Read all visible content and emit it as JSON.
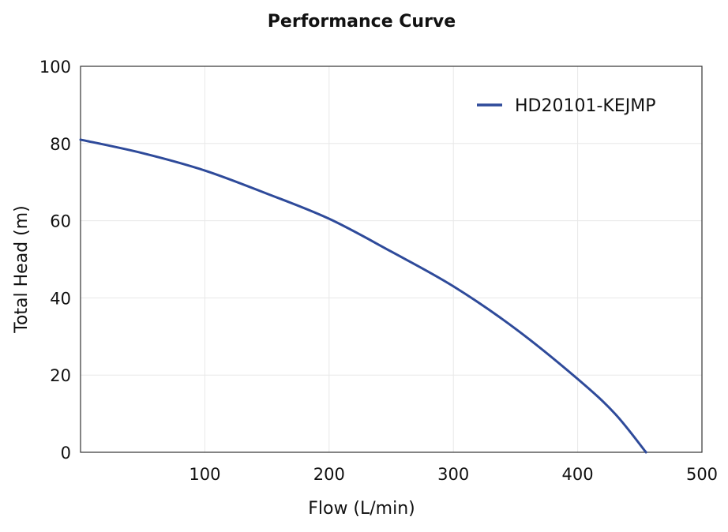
{
  "chart_data": {
    "type": "line",
    "title": "Performance Curve",
    "xlabel": "Flow (L/min)",
    "ylabel": "Total Head (m)",
    "xlim": [
      0,
      500
    ],
    "ylim": [
      0,
      100
    ],
    "x_ticks": [
      100,
      200,
      300,
      400,
      500
    ],
    "y_ticks": [
      0,
      20,
      40,
      60,
      80,
      100
    ],
    "grid": true,
    "legend_position": "top-right",
    "series": [
      {
        "name": "HD20101-KEJMP",
        "color": "#2e4a9a",
        "x": [
          0,
          50,
          100,
          150,
          200,
          250,
          300,
          350,
          400,
          430,
          455
        ],
        "y": [
          81,
          77.5,
          73,
          67,
          60.5,
          52,
          43,
          32,
          19,
          10,
          0
        ]
      }
    ]
  }
}
